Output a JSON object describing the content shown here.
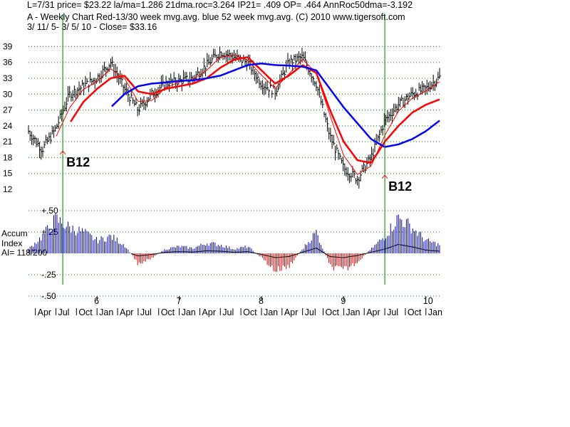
{
  "header": {
    "line1": "L=7/31  price= $23.22  la/ma=1.286 21dma.roc=3.264 IP21= .409 OP= .464 AnnRoc50dma=-3.192",
    "line2": "A  - Weekly Chart  Red-13/30 week mvg.avg.  blue 52 week mvg.avg.  (C) 2010 www.tigersoft.com",
    "line3": " 3/ 11/ 5- 3/ 5/ 10 -     Close= $33.16"
  },
  "colors": {
    "bar": "#000000",
    "ma13": "#ff0000",
    "ma30": "#ff0000",
    "ma52": "#0000ff",
    "accum_pos": "#0000aa",
    "accum_neg": "#cc0000",
    "signal": "#008000",
    "grid": "#008000"
  },
  "signals": [
    {
      "label": "B12",
      "date": "2005-08"
    },
    {
      "label": "B12",
      "date": "2009-07"
    }
  ],
  "chart_data": [
    {
      "type": "line",
      "title": "A  - Weekly Chart",
      "ylim": [
        12,
        40
      ],
      "yticks": [
        "39",
        "36",
        "33",
        "30",
        "27",
        "24",
        "21",
        "18",
        "15",
        "12"
      ],
      "x_year_labels": [
        "6",
        "7",
        "8",
        "9",
        "10"
      ],
      "x_month_labels": [
        "Apr",
        "Jul",
        "Oct",
        "Jan",
        "Apr",
        "Jul",
        "Oct",
        "Jan",
        "Apr",
        "Jul",
        "Oct",
        "Jan",
        "Apr",
        "Jul",
        "Oct",
        "Jan",
        "Apr",
        "Jul",
        "Oct",
        "Jan"
      ],
      "x": [
        "2005-03",
        "2005-05",
        "2005-07",
        "2005-09",
        "2005-11",
        "2006-01",
        "2006-03",
        "2006-05",
        "2006-07",
        "2006-09",
        "2006-11",
        "2007-01",
        "2007-03",
        "2007-05",
        "2007-07",
        "2007-09",
        "2007-11",
        "2008-01",
        "2008-03",
        "2008-05",
        "2008-07",
        "2008-09",
        "2008-11",
        "2009-01",
        "2009-03",
        "2009-05",
        "2009-07",
        "2009-09",
        "2009-11",
        "2010-01",
        "2010-03"
      ],
      "series": [
        {
          "name": "price",
          "values": [
            23,
            19.5,
            23.5,
            30,
            31.5,
            33,
            36,
            31,
            27,
            30,
            32,
            32.5,
            33,
            35.5,
            38,
            37,
            36,
            32,
            30.5,
            36,
            37,
            32,
            22,
            16,
            14,
            18,
            25,
            28,
            30,
            31,
            33.2
          ]
        },
        {
          "name": "Red-13/30 week mvg.avg.",
          "values": [
            null,
            null,
            null,
            24.5,
            28.5,
            31,
            33,
            33.5,
            30.5,
            30,
            31,
            31.5,
            32,
            33,
            35,
            36.5,
            37,
            34.5,
            32,
            33.5,
            35.5,
            34,
            27,
            21,
            17.5,
            17,
            21,
            24,
            26.5,
            28,
            29
          ]
        },
        {
          "name": "blue 52 week mvg.avg.",
          "values": [
            null,
            null,
            null,
            null,
            null,
            null,
            27.5,
            30,
            31.5,
            32,
            32.2,
            32.5,
            32.6,
            33,
            33.5,
            34.5,
            35.5,
            35.8,
            35.5,
            35.4,
            35.2,
            34.5,
            31,
            27.5,
            24.5,
            21.5,
            20,
            20.5,
            21.5,
            23,
            25
          ]
        }
      ]
    },
    {
      "type": "bar",
      "title": "Accum Index",
      "subtitle": "AI= 118/200",
      "ylabel_line1": "Accum",
      "ylabel_line2": "Index",
      "ylim": [
        -0.5,
        0.5
      ],
      "yticks": [
        "+.50",
        "+.25",
        "-.25",
        "-.50"
      ],
      "x": [
        "2005-03",
        "2005-05",
        "2005-07",
        "2005-09",
        "2005-11",
        "2006-01",
        "2006-03",
        "2006-05",
        "2006-07",
        "2006-09",
        "2006-11",
        "2007-01",
        "2007-03",
        "2007-05",
        "2007-07",
        "2007-09",
        "2007-11",
        "2008-01",
        "2008-03",
        "2008-05",
        "2008-07",
        "2008-09",
        "2008-11",
        "2009-01",
        "2009-03",
        "2009-05",
        "2009-07",
        "2009-09",
        "2009-11",
        "2010-01",
        "2010-03"
      ],
      "values": [
        0.05,
        0.2,
        0.4,
        0.3,
        0.25,
        0.15,
        0.2,
        0.1,
        -0.12,
        -0.05,
        0.05,
        0.08,
        0.06,
        0.12,
        0.1,
        0.05,
        0.08,
        -0.05,
        -0.2,
        -0.15,
        0.05,
        0.25,
        -0.15,
        -0.2,
        -0.1,
        0.05,
        0.2,
        0.42,
        0.3,
        0.15,
        0.1
      ]
    }
  ]
}
